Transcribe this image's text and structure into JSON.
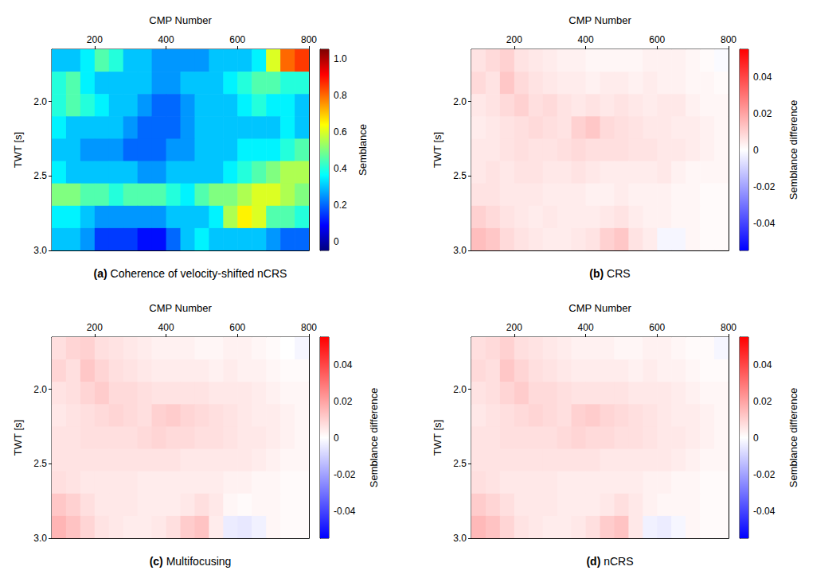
{
  "chart_data": [
    {
      "type": "heatmap",
      "panel": "(a)",
      "title": "Coherence of velocity-shifted nCRS",
      "x_label": "CMP Number",
      "y_label": "TWT [s]",
      "xlim": [
        80,
        800
      ],
      "xticks": [
        200,
        400,
        600,
        800
      ],
      "ylim": [
        1.65,
        3.0
      ],
      "yticks": [
        {
          "value": 2,
          "label": "2.0"
        },
        2.5,
        {
          "value": 3,
          "label": "3.0"
        }
      ],
      "x_edges": [
        80,
        120,
        160,
        200,
        240,
        280,
        320,
        360,
        400,
        440,
        480,
        520,
        560,
        600,
        640,
        680,
        720,
        760,
        800
      ],
      "y_edges": [
        1.65,
        1.8,
        1.95,
        2.1,
        2.25,
        2.4,
        2.55,
        2.7,
        2.85,
        3.0
      ],
      "cells": [
        [
          0.3,
          0.3,
          0.35,
          0.45,
          0.4,
          0.3,
          0.3,
          0.25,
          0.25,
          0.25,
          0.25,
          0.3,
          0.3,
          0.3,
          0.35,
          0.6,
          0.8,
          0.85
        ],
        [
          0.4,
          0.45,
          0.35,
          0.3,
          0.3,
          0.3,
          0.3,
          0.25,
          0.25,
          0.3,
          0.3,
          0.3,
          0.35,
          0.4,
          0.45,
          0.45,
          0.4,
          0.4
        ],
        [
          0.4,
          0.45,
          0.4,
          0.35,
          0.3,
          0.3,
          0.25,
          0.2,
          0.2,
          0.25,
          0.3,
          0.3,
          0.3,
          0.35,
          0.4,
          0.35,
          0.35,
          0.3
        ],
        [
          0.35,
          0.3,
          0.3,
          0.3,
          0.3,
          0.25,
          0.2,
          0.2,
          0.2,
          0.25,
          0.3,
          0.3,
          0.3,
          0.3,
          0.3,
          0.3,
          0.35,
          0.3
        ],
        [
          0.3,
          0.3,
          0.25,
          0.25,
          0.25,
          0.2,
          0.2,
          0.2,
          0.25,
          0.25,
          0.3,
          0.3,
          0.3,
          0.35,
          0.35,
          0.35,
          0.4,
          0.45
        ],
        [
          0.35,
          0.3,
          0.3,
          0.3,
          0.3,
          0.3,
          0.25,
          0.25,
          0.3,
          0.3,
          0.3,
          0.3,
          0.35,
          0.4,
          0.45,
          0.5,
          0.55,
          0.55
        ],
        [
          0.5,
          0.5,
          0.45,
          0.45,
          0.4,
          0.45,
          0.45,
          0.45,
          0.4,
          0.35,
          0.45,
          0.5,
          0.5,
          0.55,
          0.6,
          0.6,
          0.55,
          0.5
        ],
        [
          0.35,
          0.35,
          0.3,
          0.25,
          0.25,
          0.25,
          0.25,
          0.25,
          0.3,
          0.3,
          0.3,
          0.35,
          0.55,
          0.65,
          0.6,
          0.45,
          0.45,
          0.4
        ],
        [
          0.3,
          0.3,
          0.25,
          0.15,
          0.15,
          0.15,
          0.1,
          0.1,
          0.2,
          0.3,
          0.35,
          0.3,
          0.3,
          0.3,
          0.3,
          0.25,
          0.2,
          0.2
        ]
      ],
      "colorbar": {
        "label": "Semblance",
        "range": [
          -0.05,
          1.05
        ],
        "ticks": [
          0,
          0.2,
          0.4,
          0.6,
          0.8,
          {
            "value": 1,
            "label": "1.0"
          }
        ]
      }
    },
    {
      "type": "heatmap",
      "panel": "(b)",
      "title": "CRS",
      "x_label": "CMP Number",
      "y_label": "TWT [s]",
      "xlim": [
        80,
        800
      ],
      "xticks": [
        200,
        400,
        600,
        800
      ],
      "ylim": [
        1.65,
        3.0
      ],
      "yticks": [
        {
          "value": 2,
          "label": "2.0"
        },
        2.5,
        {
          "value": 3,
          "label": "3.0"
        }
      ],
      "x_edges": [
        80,
        120,
        160,
        200,
        240,
        280,
        320,
        360,
        400,
        440,
        480,
        520,
        560,
        600,
        640,
        680,
        720,
        760,
        800
      ],
      "y_edges": [
        1.65,
        1.8,
        1.95,
        2.1,
        2.25,
        2.4,
        2.55,
        2.7,
        2.85,
        3.0
      ],
      "cells": [
        [
          0.006,
          0.008,
          0.01,
          0.006,
          0.005,
          0.004,
          0.003,
          0.003,
          0.002,
          0.002,
          0.002,
          0.002,
          0.003,
          0.003,
          0.003,
          0.002,
          0.001,
          -0.001
        ],
        [
          0.008,
          0.006,
          0.012,
          0.008,
          0.006,
          0.005,
          0.004,
          0.004,
          0.003,
          0.004,
          0.004,
          0.003,
          0.004,
          0.003,
          0.003,
          0.002,
          0.002,
          0.001
        ],
        [
          0.005,
          0.006,
          0.008,
          0.01,
          0.007,
          0.008,
          0.006,
          0.005,
          0.006,
          0.005,
          0.006,
          0.005,
          0.004,
          0.005,
          0.005,
          0.003,
          0.002,
          0.002
        ],
        [
          0.004,
          0.005,
          0.006,
          0.007,
          0.008,
          0.007,
          0.006,
          0.01,
          0.012,
          0.008,
          0.007,
          0.006,
          0.005,
          0.005,
          0.004,
          0.004,
          0.003,
          0.002
        ],
        [
          0.005,
          0.005,
          0.006,
          0.007,
          0.006,
          0.006,
          0.007,
          0.008,
          0.007,
          0.007,
          0.007,
          0.006,
          0.006,
          0.005,
          0.005,
          0.004,
          0.003,
          0.002
        ],
        [
          0.005,
          0.006,
          0.005,
          0.006,
          0.006,
          0.005,
          0.005,
          0.006,
          0.005,
          0.004,
          0.004,
          0.004,
          0.004,
          0.005,
          0.003,
          0.002,
          0.002,
          0.002
        ],
        [
          0.006,
          0.006,
          0.005,
          0.005,
          0.005,
          0.004,
          0.004,
          0.004,
          0.003,
          0.003,
          0.004,
          0.003,
          0.003,
          0.003,
          0.002,
          0.002,
          0.001,
          0.001
        ],
        [
          0.01,
          0.008,
          0.006,
          0.005,
          0.004,
          0.005,
          0.004,
          0.004,
          0.004,
          0.005,
          0.006,
          0.004,
          0.003,
          0.003,
          0.002,
          0.002,
          0.001,
          0.001
        ],
        [
          0.014,
          0.012,
          0.008,
          0.006,
          0.005,
          0.004,
          0.004,
          0.005,
          0.006,
          0.01,
          0.012,
          0.006,
          0.004,
          -0.002,
          -0.002,
          0.002,
          0.001,
          0.001
        ]
      ],
      "colorbar": {
        "label": "Semblance difference",
        "range": [
          -0.055,
          0.055
        ],
        "ticks": [
          -0.04,
          -0.02,
          0,
          0.02,
          0.04
        ]
      }
    },
    {
      "type": "heatmap",
      "panel": "(c)",
      "title": "Multifocusing",
      "x_label": "CMP Number",
      "y_label": "TWT [s]",
      "xlim": [
        80,
        800
      ],
      "xticks": [
        200,
        400,
        600,
        800
      ],
      "ylim": [
        1.65,
        3.0
      ],
      "yticks": [
        {
          "value": 2,
          "label": "2.0"
        },
        2.5,
        {
          "value": 3,
          "label": "3.0"
        }
      ],
      "x_edges": [
        80,
        120,
        160,
        200,
        240,
        280,
        320,
        360,
        400,
        440,
        480,
        520,
        560,
        600,
        640,
        680,
        720,
        760,
        800
      ],
      "y_edges": [
        1.65,
        1.8,
        1.95,
        2.1,
        2.25,
        2.4,
        2.55,
        2.7,
        2.85,
        3.0
      ],
      "cells": [
        [
          0.007,
          0.009,
          0.01,
          0.007,
          0.006,
          0.005,
          0.004,
          0.003,
          0.003,
          0.003,
          0.002,
          0.002,
          0.003,
          0.003,
          0.002,
          0.001,
          0,
          -0.002
        ],
        [
          0.009,
          0.007,
          0.012,
          0.009,
          0.007,
          0.006,
          0.005,
          0.004,
          0.004,
          0.004,
          0.004,
          0.003,
          0.004,
          0.003,
          0.003,
          0.002,
          0.001,
          0.001
        ],
        [
          0.006,
          0.007,
          0.009,
          0.011,
          0.008,
          0.008,
          0.007,
          0.006,
          0.006,
          0.006,
          0.006,
          0.005,
          0.005,
          0.005,
          0.004,
          0.003,
          0.002,
          0.002
        ],
        [
          0.005,
          0.006,
          0.007,
          0.008,
          0.009,
          0.008,
          0.007,
          0.01,
          0.011,
          0.009,
          0.008,
          0.007,
          0.006,
          0.005,
          0.004,
          0.004,
          0.003,
          0.002
        ],
        [
          0.006,
          0.006,
          0.007,
          0.007,
          0.007,
          0.007,
          0.008,
          0.009,
          0.008,
          0.008,
          0.007,
          0.007,
          0.006,
          0.005,
          0.005,
          0.004,
          0.003,
          0.002
        ],
        [
          0.006,
          0.006,
          0.006,
          0.006,
          0.006,
          0.006,
          0.006,
          0.006,
          0.006,
          0.005,
          0.005,
          0.005,
          0.005,
          0.005,
          0.004,
          0.003,
          0.002,
          0.002
        ],
        [
          0.007,
          0.006,
          0.005,
          0.005,
          0.005,
          0.005,
          0.004,
          0.004,
          0.004,
          0.004,
          0.004,
          0.004,
          0.003,
          0.003,
          0.002,
          0.002,
          0.001,
          0.001
        ],
        [
          0.012,
          0.01,
          0.007,
          0.005,
          0.005,
          0.005,
          0.004,
          0.004,
          0.004,
          0.005,
          0.007,
          0.005,
          0.002,
          0.001,
          0.002,
          0.002,
          0.001,
          0.001
        ],
        [
          0.016,
          0.013,
          0.009,
          0.006,
          0.005,
          0.004,
          0.004,
          0.005,
          0.007,
          0.011,
          0.013,
          0.004,
          -0.004,
          -0.005,
          -0.003,
          0.002,
          0.001,
          0.001
        ]
      ],
      "colorbar": {
        "label": "Semblance difference",
        "range": [
          -0.055,
          0.055
        ],
        "ticks": [
          -0.04,
          -0.02,
          0,
          0.02,
          0.04
        ]
      }
    },
    {
      "type": "heatmap",
      "panel": "(d)",
      "title": "nCRS",
      "x_label": "CMP Number",
      "y_label": "TWT [s]",
      "xlim": [
        80,
        800
      ],
      "xticks": [
        200,
        400,
        600,
        800
      ],
      "ylim": [
        1.65,
        3.0
      ],
      "yticks": [
        {
          "value": 2,
          "label": "2.0"
        },
        2.5,
        {
          "value": 3,
          "label": "3.0"
        }
      ],
      "x_edges": [
        80,
        120,
        160,
        200,
        240,
        280,
        320,
        360,
        400,
        440,
        480,
        520,
        560,
        600,
        640,
        680,
        720,
        760,
        800
      ],
      "y_edges": [
        1.65,
        1.8,
        1.95,
        2.1,
        2.25,
        2.4,
        2.55,
        2.7,
        2.85,
        3.0
      ],
      "cells": [
        [
          0.007,
          0.008,
          0.01,
          0.007,
          0.006,
          0.005,
          0.004,
          0.003,
          0.003,
          0.003,
          0.002,
          0.002,
          0.003,
          0.003,
          0.002,
          0.001,
          0.001,
          -0.002
        ],
        [
          0.008,
          0.007,
          0.012,
          0.009,
          0.007,
          0.006,
          0.005,
          0.004,
          0.004,
          0.004,
          0.004,
          0.003,
          0.004,
          0.003,
          0.003,
          0.002,
          0.001,
          0.001
        ],
        [
          0.006,
          0.007,
          0.009,
          0.011,
          0.008,
          0.008,
          0.007,
          0.006,
          0.006,
          0.006,
          0.006,
          0.005,
          0.005,
          0.005,
          0.004,
          0.003,
          0.002,
          0.002
        ],
        [
          0.005,
          0.006,
          0.007,
          0.008,
          0.009,
          0.008,
          0.007,
          0.01,
          0.011,
          0.009,
          0.008,
          0.007,
          0.006,
          0.005,
          0.004,
          0.004,
          0.003,
          0.002
        ],
        [
          0.006,
          0.006,
          0.007,
          0.007,
          0.007,
          0.007,
          0.008,
          0.009,
          0.008,
          0.008,
          0.007,
          0.007,
          0.006,
          0.005,
          0.005,
          0.004,
          0.003,
          0.002
        ],
        [
          0.006,
          0.006,
          0.006,
          0.006,
          0.006,
          0.006,
          0.006,
          0.006,
          0.006,
          0.005,
          0.005,
          0.005,
          0.005,
          0.005,
          0.004,
          0.003,
          0.002,
          0.002
        ],
        [
          0.007,
          0.006,
          0.005,
          0.005,
          0.005,
          0.005,
          0.004,
          0.004,
          0.004,
          0.004,
          0.004,
          0.004,
          0.003,
          0.003,
          0.002,
          0.002,
          0.001,
          0.001
        ],
        [
          0.011,
          0.009,
          0.007,
          0.005,
          0.005,
          0.005,
          0.004,
          0.004,
          0.004,
          0.005,
          0.007,
          0.005,
          0.003,
          0.002,
          0.002,
          0.002,
          0.001,
          0.001
        ],
        [
          0.015,
          0.013,
          0.009,
          0.006,
          0.005,
          0.004,
          0.004,
          0.005,
          0.007,
          0.011,
          0.013,
          0.005,
          -0.003,
          -0.004,
          -0.002,
          0.002,
          0.001,
          0.001
        ]
      ],
      "colorbar": {
        "label": "Semblance difference",
        "range": [
          -0.055,
          0.055
        ],
        "ticks": [
          -0.04,
          -0.02,
          0,
          0.02,
          0.04
        ]
      }
    }
  ]
}
